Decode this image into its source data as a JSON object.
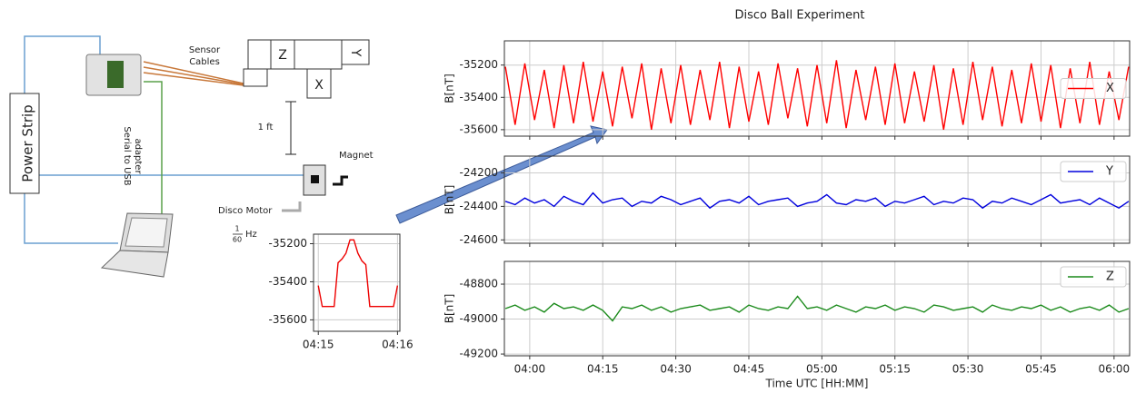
{
  "diagram": {
    "power_strip": "Power Strip",
    "sensor_cables": [
      "Sensor",
      "Cables"
    ],
    "axis_z": "Z",
    "axis_x": "X",
    "axis_y": "Y",
    "distance": "1 ft",
    "magnet": "Magnet",
    "motor": "Disco Motor",
    "frequency": {
      "numerator": "1",
      "denominator": "60",
      "unit": "Hz"
    },
    "adapter": [
      "Serial to USB",
      "adapter"
    ]
  },
  "chart_data": [
    {
      "type": "line",
      "title": "Disco Ball Experiment",
      "xlabel": "Time UTC [HH:MM]",
      "grid": true,
      "x": [
        235,
        237,
        239,
        241,
        243,
        245,
        247,
        249,
        251,
        253,
        255,
        257,
        259,
        261,
        263,
        265,
        267,
        269,
        271,
        273,
        275,
        277,
        279,
        281,
        283,
        285,
        287,
        289,
        291,
        293,
        295,
        297,
        299,
        301,
        303,
        305,
        307,
        309,
        311,
        313,
        315,
        317,
        319,
        321,
        323,
        325,
        327,
        329,
        331,
        333,
        335,
        337,
        339,
        341,
        343,
        345,
        347,
        349,
        351,
        353,
        355,
        357,
        359,
        361,
        363
      ],
      "xlim": [
        234.8,
        363.2
      ],
      "xticks": [
        {
          "value": 240,
          "label": "04:00"
        },
        {
          "value": 255,
          "label": "04:15"
        },
        {
          "value": 270,
          "label": "04:30"
        },
        {
          "value": 285,
          "label": "04:45"
        },
        {
          "value": 300,
          "label": "05:00"
        },
        {
          "value": 315,
          "label": "05:15"
        },
        {
          "value": 330,
          "label": "05:30"
        },
        {
          "value": 345,
          "label": "05:45"
        },
        {
          "value": 360,
          "label": "06:00"
        }
      ],
      "panels": [
        {
          "ylabel": "B[nT]",
          "ylim": [
            -35640,
            -35050
          ],
          "yticks": [
            -35200,
            -35400,
            -35600
          ],
          "legend": "center right",
          "series": [
            {
              "name": "X",
              "color": "#ff0000",
              "values": [
                -35210,
                -35570,
                -35190,
                -35540,
                -35230,
                -35590,
                -35200,
                -35560,
                -35180,
                -35550,
                -35240,
                -35580,
                -35210,
                -35530,
                -35190,
                -35600,
                -35220,
                -35560,
                -35200,
                -35570,
                -35230,
                -35540,
                -35180,
                -35590,
                -35210,
                -35550,
                -35240,
                -35570,
                -35190,
                -35530,
                -35220,
                -35580,
                -35200,
                -35560,
                -35170,
                -35590,
                -35230,
                -35540,
                -35210,
                -35570,
                -35190,
                -35560,
                -35240,
                -35550,
                -35200,
                -35600,
                -35220,
                -35570,
                -35180,
                -35540,
                -35210,
                -35580,
                -35230,
                -35560,
                -35190,
                -35550,
                -35200,
                -35590,
                -35220,
                -35560,
                -35180,
                -35570,
                -35240,
                -35540,
                -35210
              ]
            }
          ]
        },
        {
          "ylabel": "B[nT]",
          "ylim": [
            -24620,
            -24100
          ],
          "yticks": [
            -24200,
            -24400,
            -24600
          ],
          "legend": "upper right",
          "series": [
            {
              "name": "Y",
              "color": "#0000dd",
              "values": [
                -24370,
                -24390,
                -24350,
                -24380,
                -24360,
                -24400,
                -24340,
                -24370,
                -24390,
                -24320,
                -24380,
                -24360,
                -24350,
                -24400,
                -24370,
                -24380,
                -24340,
                -24360,
                -24390,
                -24370,
                -24350,
                -24410,
                -24370,
                -24360,
                -24380,
                -24340,
                -24390,
                -24370,
                -24360,
                -24350,
                -24400,
                -24380,
                -24370,
                -24330,
                -24380,
                -24390,
                -24360,
                -24370,
                -24350,
                -24400,
                -24370,
                -24380,
                -24360,
                -24340,
                -24390,
                -24370,
                -24380,
                -24350,
                -24360,
                -24410,
                -24370,
                -24380,
                -24350,
                -24370,
                -24390,
                -24360,
                -24330,
                -24380,
                -24370,
                -24360,
                -24390,
                -24350,
                -24380,
                -24410,
                -24370
              ]
            }
          ]
        },
        {
          "ylabel": "B[nT]",
          "ylim": [
            -49210,
            -48670
          ],
          "yticks": [
            -48800,
            -49000,
            -49200
          ],
          "legend": "upper right",
          "series": [
            {
              "name": "Z",
              "color": "#1a8a1a",
              "values": [
                -48940,
                -48920,
                -48950,
                -48930,
                -48960,
                -48910,
                -48940,
                -48930,
                -48950,
                -48920,
                -48950,
                -49010,
                -48930,
                -48940,
                -48920,
                -48950,
                -48930,
                -48960,
                -48940,
                -48930,
                -48920,
                -48950,
                -48940,
                -48930,
                -48960,
                -48920,
                -48940,
                -48950,
                -48930,
                -48940,
                -48870,
                -48940,
                -48930,
                -48950,
                -48920,
                -48940,
                -48960,
                -48930,
                -48940,
                -48920,
                -48950,
                -48930,
                -48940,
                -48960,
                -48920,
                -48930,
                -48950,
                -48940,
                -48930,
                -48960,
                -48920,
                -48940,
                -48950,
                -48930,
                -48940,
                -48920,
                -48950,
                -48930,
                -48960,
                -48940,
                -48930,
                -48950,
                -48920,
                -48960,
                -48940
              ]
            }
          ]
        }
      ]
    },
    {
      "type": "line",
      "grid": true,
      "x": [
        255,
        255.05,
        255.1,
        255.15,
        255.2,
        255.25,
        255.3,
        255.35,
        255.4,
        255.45,
        255.5,
        255.55,
        255.6,
        255.65,
        255.7,
        255.75,
        255.8,
        255.85,
        255.9,
        255.95,
        256
      ],
      "xlim": [
        254.94,
        256.03
      ],
      "xticks": [
        {
          "value": 255,
          "label": "04:15"
        },
        {
          "value": 256,
          "label": "04:16"
        }
      ],
      "ylim": [
        -35660,
        -35150
      ],
      "yticks": [
        -35200,
        -35400,
        -35600
      ],
      "series": [
        {
          "color": "#ee0000",
          "values": [
            -35420,
            -35530,
            -35530,
            -35530,
            -35530,
            -35300,
            -35280,
            -35250,
            -35180,
            -35180,
            -35250,
            -35290,
            -35310,
            -35530,
            -35530,
            -35530,
            -35530,
            -35530,
            -35530,
            -35530,
            -35420
          ]
        }
      ]
    }
  ]
}
